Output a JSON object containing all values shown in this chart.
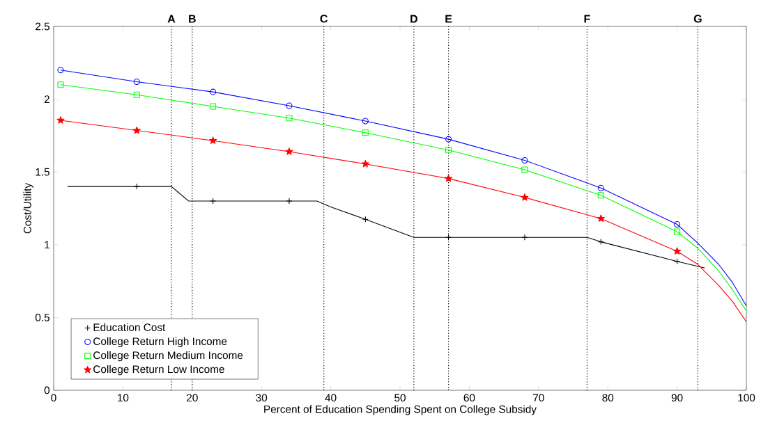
{
  "chart_data": {
    "type": "line",
    "xlabel": "Percent of Education Spending Spent on College Subsidy",
    "ylabel": "Cost/Utility",
    "xlim": [
      0,
      100
    ],
    "ylim": [
      0,
      2.5
    ],
    "xticks": [
      0,
      10,
      20,
      30,
      40,
      50,
      60,
      70,
      80,
      90,
      100
    ],
    "yticks": [
      0,
      0.5,
      1,
      1.5,
      2,
      2.5
    ],
    "legend": "bottom left",
    "series": [
      {
        "marker": "none",
        "color": "#000000",
        "x": [
          2,
          17,
          18,
          19.5,
          38,
          40,
          45,
          52,
          77,
          79,
          90,
          94
        ],
        "values": [
          1.4,
          1.4,
          1.36,
          1.3,
          1.3,
          1.26,
          1.175,
          1.05,
          1.05,
          1.02,
          0.885,
          0.84
        ]
      },
      {
        "marker": "none",
        "color": "#0000ff",
        "x": [
          1,
          12,
          23,
          34,
          45,
          57,
          68,
          79,
          90,
          93,
          96,
          98,
          100
        ],
        "values": [
          2.2,
          2.12,
          2.05,
          1.955,
          1.85,
          1.725,
          1.58,
          1.39,
          1.14,
          1.01,
          0.865,
          0.74,
          0.58
        ]
      },
      {
        "marker": "none",
        "color": "#00ff00",
        "x": [
          1,
          12,
          23,
          34,
          45,
          57,
          68,
          79,
          90,
          93,
          96,
          98,
          100
        ],
        "values": [
          2.1,
          2.03,
          1.95,
          1.87,
          1.77,
          1.65,
          1.515,
          1.34,
          1.09,
          0.975,
          0.82,
          0.69,
          0.545
        ]
      },
      {
        "marker": "none",
        "color": "#ff0000",
        "x": [
          1,
          12,
          23,
          34,
          45,
          57,
          68,
          79,
          90,
          93,
          96,
          98,
          100
        ],
        "values": [
          1.855,
          1.785,
          1.715,
          1.64,
          1.555,
          1.455,
          1.325,
          1.18,
          0.955,
          0.865,
          0.72,
          0.61,
          0.47
        ]
      },
      {
        "type": "scatter",
        "name": "Education Cost",
        "marker": "cross",
        "color": "#000000",
        "x": [
          12,
          23,
          34,
          45,
          57,
          68,
          79,
          90
        ],
        "values": [
          1.4,
          1.3,
          1.3,
          1.175,
          1.05,
          1.05,
          1.02,
          0.885
        ]
      },
      {
        "type": "scatter",
        "name": "College Return High Income",
        "marker": "circle",
        "color": "#0000ff",
        "x": [
          1,
          12,
          23,
          34,
          45,
          57,
          68,
          79,
          90
        ],
        "values": [
          2.2,
          2.12,
          2.05,
          1.955,
          1.85,
          1.725,
          1.58,
          1.39,
          1.14
        ]
      },
      {
        "type": "scatter",
        "name": "College Return Medium Income",
        "marker": "square",
        "color": "#00ff00",
        "x": [
          1,
          12,
          23,
          34,
          45,
          57,
          68,
          79,
          90
        ],
        "values": [
          2.1,
          2.03,
          1.95,
          1.87,
          1.77,
          1.65,
          1.515,
          1.34,
          1.09
        ]
      },
      {
        "type": "scatter",
        "name": "College Return Low Income",
        "marker": "star",
        "color": "#ff0000",
        "x": [
          1,
          12,
          23,
          34,
          45,
          57,
          68,
          79,
          90
        ],
        "values": [
          1.855,
          1.785,
          1.715,
          1.64,
          1.555,
          1.455,
          1.325,
          1.18,
          0.955
        ]
      }
    ],
    "ref_lines": [
      {
        "axis": "x",
        "value": 17,
        "label": "A",
        "line_style": "dotted"
      },
      {
        "axis": "x",
        "value": 20,
        "label": "B",
        "line_style": "dotted"
      },
      {
        "axis": "x",
        "value": 39,
        "label": "C",
        "line_style": "dotted"
      },
      {
        "axis": "x",
        "value": 52,
        "label": "D",
        "line_style": "dotted"
      },
      {
        "axis": "x",
        "value": 57,
        "label": "E",
        "line_style": "dotted"
      },
      {
        "axis": "x",
        "value": 77,
        "label": "F",
        "line_style": "dotted"
      },
      {
        "axis": "x",
        "value": 93,
        "label": "G",
        "line_style": "dotted"
      }
    ]
  }
}
